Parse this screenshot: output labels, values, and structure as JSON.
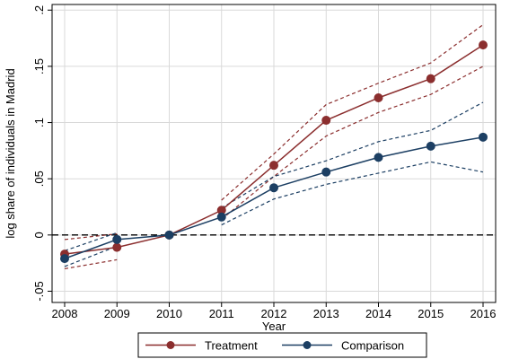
{
  "chart_data": {
    "type": "line",
    "title": "",
    "xlabel": "Year",
    "ylabel": "log share of individuals in Madrid",
    "x": [
      2008,
      2009,
      2010,
      2011,
      2012,
      2013,
      2014,
      2015,
      2016
    ],
    "x_tick_labels": [
      "2008",
      "2009",
      "2010",
      "2011",
      "2012",
      "2013",
      "2014",
      "2015",
      "2016"
    ],
    "ylim": [
      -0.06,
      0.205
    ],
    "y_ticks": [
      -0.05,
      0,
      0.05,
      0.1,
      0.15,
      0.2
    ],
    "y_tick_labels": [
      "-.05",
      "0",
      ".05",
      ".1",
      ".15",
      ".2"
    ],
    "reference_line_y": 0,
    "grid": true,
    "legend_position": "bottom",
    "series": [
      {
        "name": "Treatment",
        "color": "#8b2e2e",
        "values": [
          -0.017,
          -0.011,
          0.0,
          0.022,
          0.062,
          0.102,
          0.122,
          0.139,
          0.169
        ],
        "ci_lower": [
          -0.03,
          -0.022,
          null,
          0.014,
          0.052,
          0.088,
          0.109,
          0.125,
          0.15
        ],
        "ci_upper": [
          -0.004,
          0.001,
          null,
          0.031,
          0.072,
          0.116,
          0.135,
          0.153,
          0.187
        ]
      },
      {
        "name": "Comparison",
        "color": "#1c3f63",
        "values": [
          -0.021,
          -0.004,
          0.0,
          0.016,
          0.042,
          0.056,
          0.069,
          0.079,
          0.087
        ],
        "ci_lower": [
          -0.028,
          -0.01,
          null,
          0.009,
          0.032,
          0.045,
          0.055,
          0.065,
          0.056
        ],
        "ci_upper": [
          -0.014,
          0.002,
          null,
          0.024,
          0.052,
          0.066,
          0.083,
          0.093,
          0.118
        ]
      }
    ]
  }
}
